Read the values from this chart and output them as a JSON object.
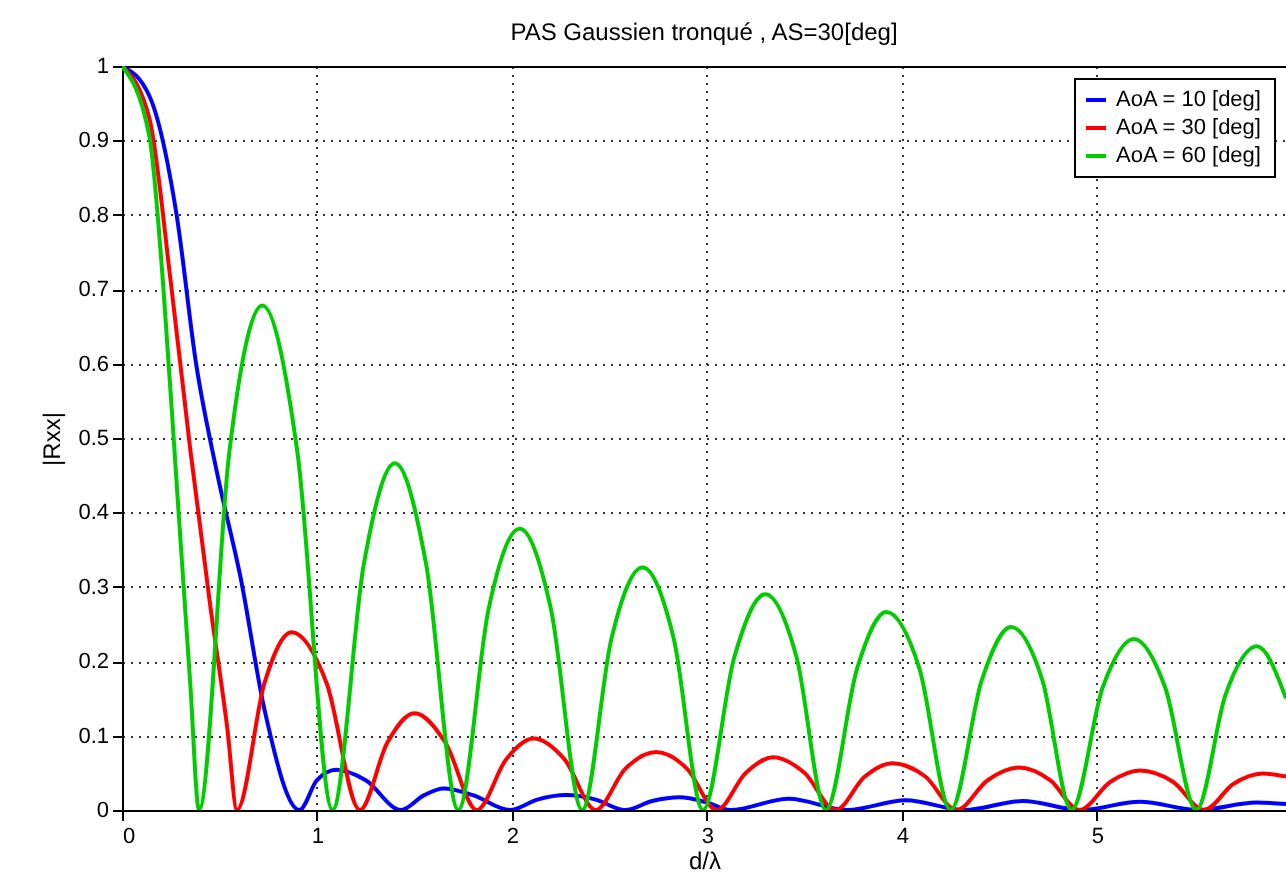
{
  "chart_data": {
    "type": "line",
    "title": "PAS Gaussien tronqué , AS=30[deg]",
    "xlabel": "d/λ",
    "ylabel": "|Rxx|",
    "xlim": [
      0,
      5.97
    ],
    "xticks": [
      0,
      1,
      2,
      3,
      4,
      5
    ],
    "ylim": [
      0,
      1
    ],
    "yticks": [
      0,
      0.1,
      0.2,
      0.3,
      0.4,
      0.5,
      0.6,
      0.7,
      0.8,
      0.9,
      1
    ],
    "grid": true,
    "legend": "top right",
    "marker": "none",
    "line_style": "solid",
    "series": [
      {
        "name": "AoA = 10 [deg]",
        "color": "#0000ff",
        "x": [
          0,
          0.14,
          0.28,
          0.38,
          0.49,
          0.61,
          0.73,
          0.91,
          1.0,
          1.1,
          1.25,
          1.43,
          1.55,
          1.65,
          1.8,
          1.99,
          2.13,
          2.28,
          2.43,
          2.58,
          2.72,
          2.86,
          3.0,
          3.12,
          3.42,
          3.72,
          4.02,
          4.32,
          4.62,
          4.92,
          5.22,
          5.52,
          5.82,
          5.97
        ],
        "values": [
          1,
          0.96,
          0.8,
          0.6,
          0.45,
          0.31,
          0.136,
          0,
          0.04,
          0.054,
          0.04,
          0,
          0.02,
          0.029,
          0.02,
          0,
          0.014,
          0.02,
          0.014,
          0,
          0.012,
          0.017,
          0.01,
          0,
          0.015,
          0,
          0.013,
          0,
          0.012,
          0,
          0.011,
          0,
          0.01,
          0.008
        ]
      },
      {
        "name": "AoA = 30 [deg]",
        "color": "#ff0000",
        "x": [
          0,
          0.14,
          0.25,
          0.35,
          0.45,
          0.54,
          0.59,
          0.73,
          0.87,
          1.05,
          1.22,
          1.36,
          1.5,
          1.66,
          1.82,
          1.97,
          2.11,
          2.27,
          2.43,
          2.58,
          2.74,
          2.9,
          3.05,
          3.2,
          3.34,
          3.5,
          3.66,
          3.81,
          3.95,
          4.12,
          4.28,
          4.44,
          4.6,
          4.76,
          4.91,
          5.07,
          5.22,
          5.39,
          5.55,
          5.7,
          5.85,
          5.97
        ],
        "values": [
          1,
          0.93,
          0.71,
          0.485,
          0.28,
          0.11,
          0,
          0.17,
          0.239,
          0.17,
          0,
          0.09,
          0.13,
          0.09,
          0,
          0.068,
          0.096,
          0.068,
          0,
          0.055,
          0.078,
          0.055,
          0,
          0.05,
          0.071,
          0.05,
          0,
          0.045,
          0.063,
          0.045,
          0,
          0.04,
          0.057,
          0.04,
          0,
          0.038,
          0.053,
          0.038,
          0,
          0.035,
          0.049,
          0.045
        ]
      },
      {
        "name": "AoA = 60 [deg]",
        "color": "#00cc00",
        "x": [
          0,
          0.14,
          0.21,
          0.28,
          0.35,
          0.395,
          0.55,
          0.72,
          0.9,
          1.08,
          1.24,
          1.4,
          1.56,
          1.725,
          1.88,
          2.04,
          2.2,
          2.36,
          2.51,
          2.67,
          2.83,
          2.98,
          3.14,
          3.3,
          3.46,
          3.61,
          3.77,
          3.92,
          4.09,
          4.25,
          4.41,
          4.56,
          4.72,
          4.87,
          5.03,
          5.19,
          5.35,
          5.51,
          5.66,
          5.82,
          5.97
        ],
        "values": [
          1,
          0.906,
          0.71,
          0.44,
          0.17,
          0,
          0.48,
          0.678,
          0.48,
          0,
          0.33,
          0.466,
          0.33,
          0,
          0.27,
          0.378,
          0.27,
          0,
          0.23,
          0.326,
          0.23,
          0,
          0.205,
          0.29,
          0.205,
          0,
          0.19,
          0.266,
          0.19,
          0,
          0.175,
          0.246,
          0.175,
          0,
          0.165,
          0.23,
          0.165,
          0,
          0.155,
          0.22,
          0.15
        ]
      }
    ]
  }
}
